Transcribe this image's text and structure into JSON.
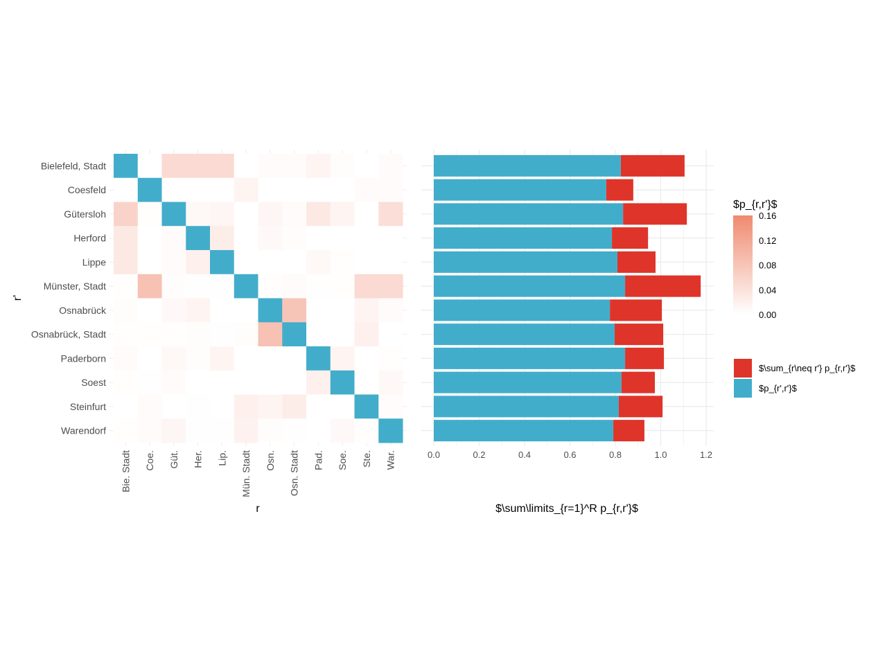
{
  "chart_data": [
    {
      "type": "heatmap",
      "xlabel": "r",
      "ylabel": "r'",
      "row_labels": [
        "Bielefeld, Stadt",
        "Coesfeld",
        "Gütersloh",
        "Herford",
        "Lippe",
        "Münster, Stadt",
        "Osnabrück",
        "Osnabrück, Stadt",
        "Paderborn",
        "Soest",
        "Steinfurt",
        "Warendorf"
      ],
      "col_labels": [
        "Bie. Stadt",
        "Coe.",
        "Güt.",
        "Her.",
        "Lip.",
        "Mün. Stadt",
        "Osn.",
        "Osn. Stadt",
        "Pad.",
        "Soe.",
        "Ste.",
        "War."
      ],
      "values": [
        [
          null,
          0,
          0.05,
          0.05,
          0.05,
          0,
          0.005,
          0.005,
          0.015,
          0.003,
          0,
          0.005
        ],
        [
          0,
          null,
          0,
          0,
          0,
          0.015,
          0,
          0,
          0,
          0,
          0.005,
          0.005
        ],
        [
          0.06,
          0.002,
          null,
          0.01,
          0.012,
          0,
          0.012,
          0.005,
          0.03,
          0.015,
          0,
          0.045
        ],
        [
          0.03,
          0,
          0.005,
          null,
          0.025,
          0,
          0.008,
          0.003,
          0,
          0,
          0,
          0
        ],
        [
          0.03,
          0,
          0.005,
          0.02,
          null,
          0,
          0,
          0,
          0.01,
          0.002,
          0,
          0
        ],
        [
          0.002,
          0.085,
          0.003,
          0.001,
          0.001,
          null,
          0.002,
          0.006,
          0.001,
          0.002,
          0.05,
          0.05
        ],
        [
          0.003,
          0,
          0.008,
          0.015,
          0,
          0,
          null,
          0.08,
          0,
          0,
          0.015,
          0.006
        ],
        [
          0.002,
          0.002,
          0.002,
          0.003,
          0.001,
          0.003,
          0.085,
          null,
          0,
          0,
          0.02,
          0
        ],
        [
          0.006,
          0,
          0.01,
          0.003,
          0.015,
          0,
          0,
          0,
          null,
          0.015,
          0,
          0.002
        ],
        [
          0.002,
          0.001,
          0.005,
          0,
          0,
          0,
          0,
          0,
          0.02,
          null,
          0,
          0.01
        ],
        [
          0,
          0.006,
          0,
          0.001,
          0,
          0.02,
          0.015,
          0.025,
          0,
          0,
          null,
          0.004
        ],
        [
          0.002,
          0.005,
          0.012,
          0.001,
          0.001,
          0.018,
          0.003,
          0.001,
          0,
          0.008,
          0.002,
          null
        ]
      ],
      "diagonal_color": "#42adcb",
      "colorbar": {
        "title": "$p_{r,r'}$",
        "range": [
          0,
          0.16
        ],
        "ticks": [
          "0.00",
          "0.04",
          "0.08",
          "0.12",
          "0.16"
        ],
        "low": "#ffffff",
        "high": "#ef8a6f"
      }
    },
    {
      "type": "bar",
      "orientation": "horizontal",
      "stacked": true,
      "xlabel": "$\\sum\\limits_{r=1}^R p_{r,r'}$",
      "xlim": [
        0,
        1.2
      ],
      "xticks": [
        "0.0",
        "0.2",
        "0.4",
        "0.6",
        "0.8",
        "1.0",
        "1.2"
      ],
      "grid": true,
      "categories": [
        "Bielefeld, Stadt",
        "Coesfeld",
        "Gütersloh",
        "Herford",
        "Lippe",
        "Münster, Stadt",
        "Osnabrück",
        "Osnabrück, Stadt",
        "Paderborn",
        "Soest",
        "Steinfurt",
        "Warendorf"
      ],
      "series": [
        {
          "name": "$p_{r',r'}$",
          "color": "#42adcb",
          "values": [
            0.824,
            0.76,
            0.834,
            0.785,
            0.809,
            0.843,
            0.776,
            0.797,
            0.843,
            0.827,
            0.815,
            0.791
          ]
        },
        {
          "name": "$\\sum_{r\\neq r'} p_{r,r'}$",
          "color": "#de342a",
          "values": [
            0.281,
            0.119,
            0.281,
            0.159,
            0.168,
            0.333,
            0.229,
            0.214,
            0.171,
            0.147,
            0.193,
            0.137
          ]
        }
      ],
      "legend_position": "right"
    }
  ]
}
